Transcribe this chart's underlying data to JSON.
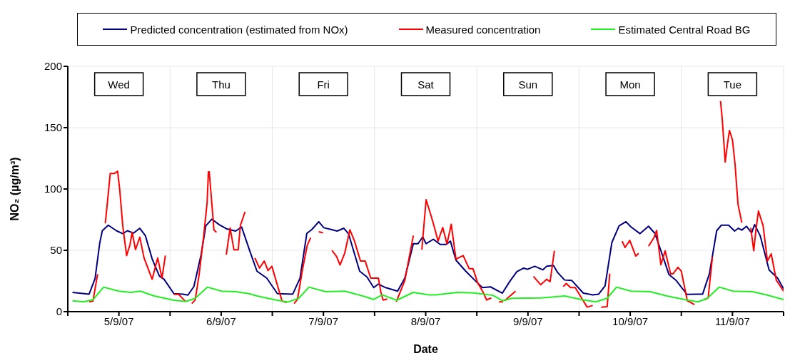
{
  "chart_data": {
    "type": "line",
    "xlabel": "Date",
    "ylabel": "NO₂ (µg/m³)",
    "xlim": [
      "--09-05T00:00",
      "--09-12T00:00"
    ],
    "xticks": [
      {
        "value": "--09-05T00:00",
        "label": null
      },
      {
        "value": "--09-05T12:00",
        "label": "5/9/07"
      },
      {
        "value": "--09-06T00:00",
        "label": null
      },
      {
        "value": "--09-06T12:00",
        "label": "6/9/07"
      },
      {
        "value": "--09-07T00:00",
        "label": null
      },
      {
        "value": "--09-07T12:00",
        "label": "7/9/07"
      },
      {
        "value": "--09-08T00:00",
        "label": null
      },
      {
        "value": "--09-08T12:00",
        "label": "8/9/07"
      },
      {
        "value": "--09-09T00:00",
        "label": null
      },
      {
        "value": "--09-09T12:00",
        "label": "9/9/07"
      },
      {
        "value": "--09-10T00:00",
        "label": null
      },
      {
        "value": "--09-10T12:00",
        "label": "10/9/07"
      },
      {
        "value": "--09-11T00:00",
        "label": null
      },
      {
        "value": "--09-11T12:00",
        "label": "11/9/07"
      },
      {
        "value": "--09-12T00:00",
        "label": null
      }
    ],
    "ylim": [
      0,
      200
    ],
    "yticks": [
      0,
      50,
      100,
      150,
      200
    ],
    "grid": true,
    "legend": "top",
    "annotations": [
      "Wed",
      "Thu",
      "Fri",
      "Sat",
      "Sun",
      "Mon",
      "Tue"
    ],
    "series": [
      {
        "name": "Predicted concentration (estimated from NOx)",
        "color": "#000080",
        "x": [
          "--09-05T01:06",
          "--09-05T05:00",
          "--09-05T06:24",
          "--09-05T07:30",
          "--09-05T08:06",
          "--09-05T09:30",
          "--09-05T11:24",
          "--09-05T12:54",
          "--09-05T14:00",
          "--09-05T15:24",
          "--09-05T16:54",
          "--09-05T18:12",
          "--09-05T19:48",
          "--09-05T21:30",
          "--09-05T22:36",
          "--09-06T00:54",
          "--09-06T03:00",
          "--09-06T04:12",
          "--09-06T05:36",
          "--09-06T07:18",
          "--09-06T08:24",
          "--09-06T09:48",
          "--09-06T11:30",
          "--09-06T13:12",
          "--09-06T15:24",
          "--09-06T16:48",
          "--09-06T18:48",
          "--09-06T20:24",
          "--09-06T22:42",
          "--09-07T01:12",
          "--09-07T04:48",
          "--09-07T06:30",
          "--09-07T08:06",
          "--09-07T09:18",
          "--09-07T10:54",
          "--09-07T12:06",
          "--09-07T13:48",
          "--09-07T15:12",
          "--09-07T16:48",
          "--09-07T17:54",
          "--09-07T20:30",
          "--09-07T22:12",
          "--09-07T23:48",
          "--09-08T00:54",
          "--09-08T02:36",
          "--09-08T05:24",
          "--09-08T07:06",
          "--09-08T09:06",
          "--09-08T10:12",
          "--09-08T11:18",
          "--09-08T12:06",
          "--09-08T13:48",
          "--09-08T15:24",
          "--09-08T16:48",
          "--09-08T17:48",
          "--09-08T19:06",
          "--09-08T21:24",
          "--09-08T23:18",
          "--09-09T01:18",
          "--09-09T03:12",
          "--09-09T06:00",
          "--09-09T07:42",
          "--09-09T09:24",
          "--09-09T11:00",
          "--09-09T11:54",
          "--09-09T13:36",
          "--09-09T15:30",
          "--09-09T16:24",
          "--09-09T18:00",
          "--09-09T18:54",
          "--09-09T20:36",
          "--09-09T22:18",
          "--09-10T01:00",
          "--09-10T03:12",
          "--09-10T04:36",
          "--09-10T06:06",
          "--09-10T07:42",
          "--09-10T09:24",
          "--09-10T11:00",
          "--09-10T12:12",
          "--09-10T14:18",
          "--09-10T16:18",
          "--09-10T17:48",
          "--09-10T19:30",
          "--09-10T21:06",
          "--09-10T22:48",
          "--09-11T01:18",
          "--09-11T03:54",
          "--09-11T05:00",
          "--09-11T06:36",
          "--09-11T08:18",
          "--09-11T09:24",
          "--09-11T11:06",
          "--09-11T12:30",
          "--09-11T13:24",
          "--09-11T14:12",
          "--09-11T15:18",
          "--09-11T16:30",
          "--09-11T17:12",
          "--09-11T18:30",
          "--09-11T20:36",
          "--09-11T22:36",
          "--09-12T00:00"
        ],
        "values": [
          15.7,
          14.3,
          27,
          56,
          66,
          70.5,
          66,
          63.6,
          66,
          64,
          68,
          62,
          43,
          29,
          26.4,
          14.7,
          14.3,
          13.5,
          20.5,
          46.7,
          70,
          75.4,
          71,
          67.6,
          65.7,
          69,
          48.6,
          33,
          27.3,
          14.7,
          14.3,
          27.3,
          63.8,
          67,
          73.3,
          68.4,
          67,
          65.7,
          68,
          63.4,
          33,
          28.3,
          19.6,
          22.5,
          19.6,
          16.7,
          27.3,
          55.4,
          55.4,
          60.9,
          55.4,
          59,
          54.8,
          54.8,
          57.5,
          42,
          33,
          26.4,
          19.6,
          20.2,
          15.1,
          24.5,
          32.6,
          35.5,
          34.5,
          37,
          34.1,
          37,
          37.6,
          32.2,
          25.8,
          25.4,
          15.1,
          13.7,
          14.3,
          21,
          56.4,
          70,
          73.3,
          69,
          63.6,
          69.6,
          63.8,
          46.7,
          30.2,
          25.4,
          14.1,
          14.3,
          14.3,
          31,
          66,
          70.5,
          70.5,
          65.7,
          68,
          66.5,
          69.6,
          64.2,
          71,
          62,
          34,
          27.3,
          18.6
        ]
      },
      {
        "name": "Measured concentration",
        "color": "#ff0000",
        "x": [
          "--09-05T05:00",
          "--09-05T05:54",
          "--09-05T07:00",
          "--09-05T07:54",
          "--09-05T08:48",
          "--09-05T09:30",
          "--09-05T09:57",
          "--09-05T10:54",
          "--09-05T11:42",
          "--09-05T12:12",
          "--09-05T12:54",
          "--09-05T13:48",
          "--09-05T14:36",
          "--09-05T15:06",
          "--09-05T15:54",
          "--09-05T16:54",
          "--09-05T17:54",
          "--09-05T19:48",
          "--09-05T21:06",
          "--09-05T22:06",
          "--09-05T22:54",
          "--09-05T23:54",
          "--09-06T00:54",
          "--09-06T02:00",
          "--09-06T03:36",
          "--09-06T04:18",
          "--09-06T05:06",
          "--09-06T05:54",
          "--09-06T06:48",
          "--09-06T07:54",
          "--09-06T08:42",
          "--09-06T09:00",
          "--09-06T09:12",
          "--09-06T09:54",
          "--09-06T10:18",
          "--09-06T10:54",
          "--09-06T12:00",
          "--09-06T13:12",
          "--09-06T14:06",
          "--09-06T15:00",
          "--09-06T16:00",
          "--09-06T16:30",
          "--09-06T17:36",
          "--09-06T18:48",
          "--09-06T19:54",
          "--09-06T21:00",
          "--09-06T22:06",
          "--09-06T23:00",
          "--09-06T23:54",
          "--09-07T01:12",
          "--09-07T02:18",
          "--09-07T03:24",
          "--09-07T04:12",
          "--09-07T05:06",
          "--09-07T05:54",
          "--09-07T07:06",
          "--09-07T08:12",
          "--09-07T09:00",
          "--09-07T10:00",
          "--09-07T10:54",
          "--09-07T11:54",
          "--09-07T13:00",
          "--09-07T14:00",
          "--09-07T15:06",
          "--09-07T15:54",
          "--09-07T17:00",
          "--09-07T18:12",
          "--09-07T19:18",
          "--09-07T20:42",
          "--09-07T21:48",
          "--09-07T23:06",
          "--09-08T00:54",
          "--09-08T01:30",
          "--09-08T02:00",
          "--09-08T03:00",
          "--09-08T04:00",
          "--09-08T05:06",
          "--09-08T07:06",
          "--09-08T09:06",
          "--09-08T10:06",
          "--09-08T11:06",
          "--09-08T12:06",
          "--09-08T13:18",
          "--09-08T14:06",
          "--09-08T14:54",
          "--09-08T16:00",
          "--09-08T17:00",
          "--09-08T18:00",
          "--09-08T19:06",
          "--09-08T20:48",
          "--09-08T22:12",
          "--09-08T23:06",
          "--09-09T00:12",
          "--09-09T01:30",
          "--09-09T02:18",
          "--09-09T03:24",
          "--09-09T04:18",
          "--09-09T05:12",
          "--09-09T06:12",
          "--09-09T06:21",
          "--09-09T06:30",
          "--09-09T09:06",
          "--09-09T11:00",
          "--09-09T13:18",
          "--09-09T15:00",
          "--09-09T16:24",
          "--09-09T17:12",
          "--09-09T18:12",
          "--09-09T19:00",
          "--09-09T20:18",
          "--09-09T21:00",
          "--09-09T22:00",
          "--09-09T23:06",
          "--09-10T00:48",
          "--09-10T01:54",
          "--09-10T03:12",
          "--09-10T04:12",
          "--09-10T05:12",
          "--09-10T06:36",
          "--09-10T07:12",
          "--09-10T08:36",
          "--09-10T10:06",
          "--09-10T10:48",
          "--09-10T11:54",
          "--09-10T13:18",
          "--09-10T14:00",
          "--09-10T15:00",
          "--09-10T16:18",
          "--09-10T17:36",
          "--09-10T18:12",
          "--09-10T19:12",
          "--09-10T20:12",
          "--09-10T21:30",
          "--09-10T22:06",
          "--09-10T23:12",
          "--09-11T00:00",
          "--09-11T01:24",
          "--09-11T03:06",
          "--09-11T04:12",
          "--09-11T05:24",
          "--09-11T06:18",
          "--09-11T07:18",
          "--09-11T08:12",
          "--09-11T09:12",
          "--09-11T09:36",
          "--09-11T10:18",
          "--09-11T10:48",
          "--09-11T11:18",
          "--09-11T12:00",
          "--09-11T12:36",
          "--09-11T13:18",
          "--09-11T14:12",
          "--09-11T15:12",
          "--09-11T16:18",
          "--09-11T17:00",
          "--09-11T17:30",
          "--09-11T18:06",
          "--09-11T19:12",
          "--09-11T20:12",
          "--09-11T21:06",
          "--09-11T22:18",
          "--09-12T00:00"
        ],
        "values": [
          8.1,
          8.5,
          30.6,
          null,
          72,
          96,
          112.6,
          112.6,
          114.5,
          99,
          70,
          45.7,
          54.5,
          64.7,
          50.6,
          60.7,
          43.8,
          26.4,
          43.8,
          27.3,
          45.7,
          null,
          14.1,
          14.1,
          8.5,
          null,
          6.6,
          9.5,
          29.6,
          62,
          89,
          114,
          114,
          84,
          66.6,
          64.7,
          null,
          46.5,
          68.2,
          50.4,
          50.4,
          70.2,
          81.4,
          null,
          43.8,
          35.5,
          41.3,
          33.5,
          37,
          21.5,
          8.5,
          7.6,
          null,
          6.6,
          9.9,
          34.6,
          54.1,
          60.3,
          null,
          65.1,
          64.2,
          null,
          50,
          44.8,
          38,
          47.7,
          66.8,
          57.5,
          41.3,
          41.3,
          27.3,
          27.3,
          15.7,
          9.5,
          10.3,
          null,
          8.1,
          25.4,
          62,
          null,
          50.6,
          91.3,
          77.8,
          68.2,
          57.5,
          68.6,
          55.2,
          71.3,
          42.8,
          45.7,
          35.1,
          35.1,
          23.5,
          15.7,
          9.5,
          11.2,
          null,
          8,
          8,
          null,
          8.9,
          16.7,
          null,
          28.7,
          21.9,
          26.4,
          24.4,
          49.6,
          null,
          20.5,
          23,
          19.6,
          19.6,
          9.9,
          3.7,
          5,
          null,
          3.7,
          4.1,
          31,
          null,
          57.5,
          52.3,
          58.1,
          45.3,
          47.5,
          null,
          53.3,
          60.5,
          66.2,
          38.2,
          49.6,
          30.6,
          31,
          36.1,
          33,
          8.9,
          5.8,
          null,
          9.5,
          11.2,
          44.6,
          null,
          171.7,
          157,
          122,
          136,
          147.7,
          140,
          120.5,
          87.6,
          72.5,
          null,
          68.2,
          49.6,
          66.2,
          82.1,
          70,
          41.3,
          47.1,
          25.6,
          16.7
        ]
      },
      {
        "name": "Estimated Central Road BG",
        "color": "#22ee22",
        "x": [
          "--09-05T01:06",
          "--09-05T03:42",
          "--09-05T05:54",
          "--09-05T08:24",
          "--09-05T12:00",
          "--09-05T14:48",
          "--09-05T17:00",
          "--09-05T20:18",
          "--09-06T00:54",
          "--09-06T03:42",
          "--09-06T05:54",
          "--09-06T08:48",
          "--09-06T12:06",
          "--09-06T15:24",
          "--09-06T18:30",
          "--09-06T20:24",
          "--09-07T00:54",
          "--09-07T03:42",
          "--09-07T06:12",
          "--09-07T08:36",
          "--09-07T12:30",
          "--09-07T17:00",
          "--09-07T22:12",
          "--09-07T23:48",
          "--09-08T01:48",
          "--09-08T05:12",
          "--09-08T09:06",
          "--09-08T12:48",
          "--09-08T14:24",
          "--09-08T19:24",
          "--09-08T23:18",
          "--09-09T03:48",
          "--09-09T06:00",
          "--09-09T08:18",
          "--09-09T15:00",
          "--09-09T20:36",
          "--09-10T00:30",
          "--09-10T03:54",
          "--09-10T06:36",
          "--09-10T08:48",
          "--09-10T12:12",
          "--09-10T16:42",
          "--09-10T20:36",
          "--09-11T01:36",
          "--09-11T03:54",
          "--09-11T06:06",
          "--09-11T08:54",
          "--09-11T12:12",
          "--09-11T16:42",
          "--09-11T20:00",
          "--09-12T00:00"
        ],
        "values": [
          8.9,
          8,
          9.7,
          20,
          16.7,
          15.7,
          16.7,
          12.8,
          9.3,
          8.3,
          10.9,
          20,
          16.7,
          16.3,
          14.7,
          12.8,
          9.5,
          7.9,
          10.9,
          20,
          16.3,
          16.7,
          11.8,
          9.9,
          13.7,
          9.3,
          15.7,
          13.7,
          13.7,
          15.7,
          15.3,
          13.3,
          8.9,
          10.9,
          11.2,
          12.8,
          9.9,
          8,
          10.9,
          20,
          16.7,
          16.3,
          12.8,
          9.3,
          8,
          10.9,
          20,
          16.7,
          16.3,
          13.7,
          9.9
        ]
      }
    ]
  }
}
